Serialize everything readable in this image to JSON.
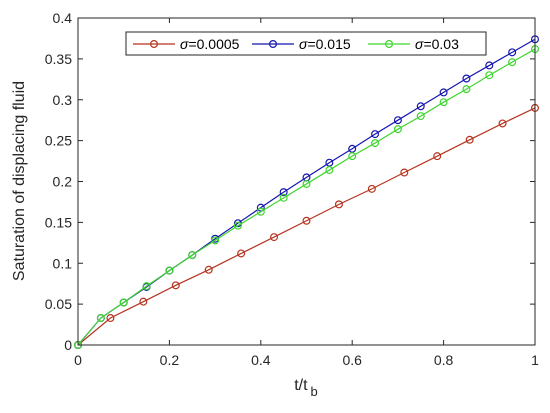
{
  "chart_data": {
    "type": "line",
    "title": "",
    "xlabel": "t/t",
    "xlabel_sub": "b",
    "ylabel": "Saturation of displacing fluid",
    "xlim": [
      0,
      1
    ],
    "ylim": [
      0,
      0.4
    ],
    "xticks": [
      0,
      0.2,
      0.4,
      0.6,
      0.8,
      1
    ],
    "xtick_labels": [
      "0",
      "0.2",
      "0.4",
      "0.6",
      "0.8",
      "1"
    ],
    "yticks": [
      0,
      0.05,
      0.1,
      0.15,
      0.2,
      0.25,
      0.3,
      0.35,
      0.4
    ],
    "ytick_labels": [
      "0",
      "0.05",
      "0.1",
      "0.15",
      "0.2",
      "0.25",
      "0.3",
      "0.35",
      "0.4"
    ],
    "grid": false,
    "legend_placement": "top",
    "series": [
      {
        "name": "σ=0.0005",
        "legend_symbol": "σ",
        "legend_value": "=0.0005",
        "color": "#b5331f",
        "x": [
          0,
          0.071,
          0.143,
          0.214,
          0.286,
          0.357,
          0.429,
          0.5,
          0.571,
          0.643,
          0.714,
          0.786,
          0.857,
          0.929,
          1.0
        ],
        "y": [
          0,
          0.033,
          0.053,
          0.073,
          0.092,
          0.112,
          0.132,
          0.152,
          0.172,
          0.191,
          0.211,
          0.231,
          0.251,
          0.271,
          0.29
        ]
      },
      {
        "name": "σ=0.015",
        "legend_symbol": "σ",
        "legend_value": "=0.015",
        "color": "#1515b0",
        "x": [
          0,
          0.05,
          0.1,
          0.15,
          0.2,
          0.25,
          0.3,
          0.35,
          0.4,
          0.45,
          0.5,
          0.55,
          0.6,
          0.65,
          0.7,
          0.75,
          0.8,
          0.85,
          0.9,
          0.95,
          1.0
        ],
        "y": [
          0,
          0.033,
          0.052,
          0.071,
          0.091,
          0.11,
          0.13,
          0.149,
          0.168,
          0.187,
          0.205,
          0.223,
          0.24,
          0.258,
          0.275,
          0.292,
          0.309,
          0.326,
          0.342,
          0.358,
          0.374
        ]
      },
      {
        "name": "σ=0.03",
        "legend_symbol": "σ",
        "legend_value": "=0.03",
        "color": "#3ed62e",
        "x": [
          0,
          0.05,
          0.1,
          0.15,
          0.2,
          0.25,
          0.3,
          0.35,
          0.4,
          0.45,
          0.5,
          0.55,
          0.6,
          0.65,
          0.7,
          0.75,
          0.8,
          0.85,
          0.9,
          0.95,
          1.0
        ],
        "y": [
          0,
          0.033,
          0.052,
          0.072,
          0.091,
          0.11,
          0.128,
          0.146,
          0.163,
          0.18,
          0.197,
          0.214,
          0.231,
          0.247,
          0.264,
          0.28,
          0.297,
          0.313,
          0.33,
          0.346,
          0.362
        ]
      }
    ]
  }
}
